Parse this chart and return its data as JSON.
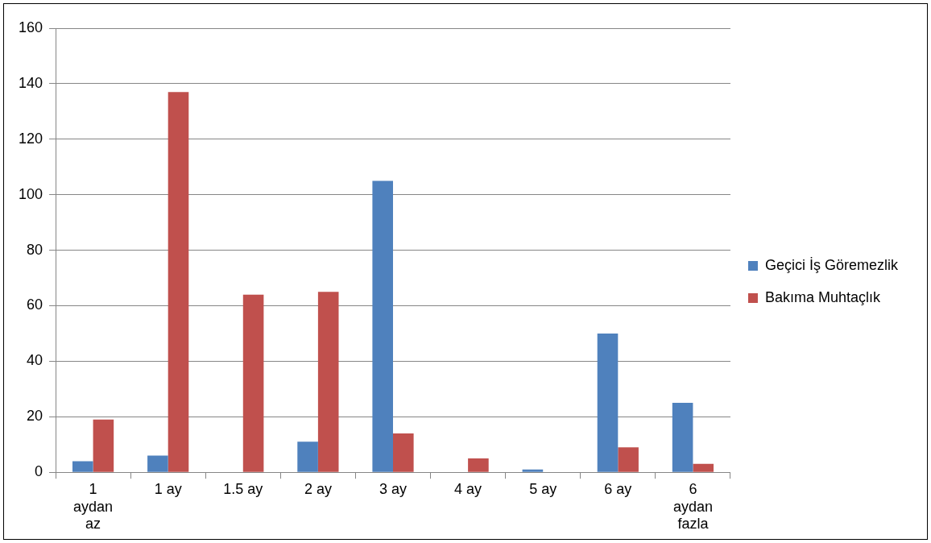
{
  "chart_data": {
    "type": "bar",
    "categories": [
      "1 aydan az",
      "1 ay",
      "1.5 ay",
      "2 ay",
      "3 ay",
      "4 ay",
      "5 ay",
      "6 ay",
      "6 aydan fazla"
    ],
    "series": [
      {
        "name": "Geçici İş Göremezlik",
        "color": "#4f81bd",
        "values": [
          4,
          6,
          0,
          11,
          105,
          0,
          1,
          50,
          25
        ]
      },
      {
        "name": "Bakıma Muhtaçlık",
        "color": "#c0504d",
        "values": [
          19,
          137,
          64,
          65,
          14,
          5,
          0,
          9,
          3
        ]
      }
    ],
    "ylim": [
      0,
      160
    ],
    "yticks": [
      0,
      20,
      40,
      60,
      80,
      100,
      120,
      140,
      160
    ],
    "grid": "y",
    "legend": "right"
  }
}
